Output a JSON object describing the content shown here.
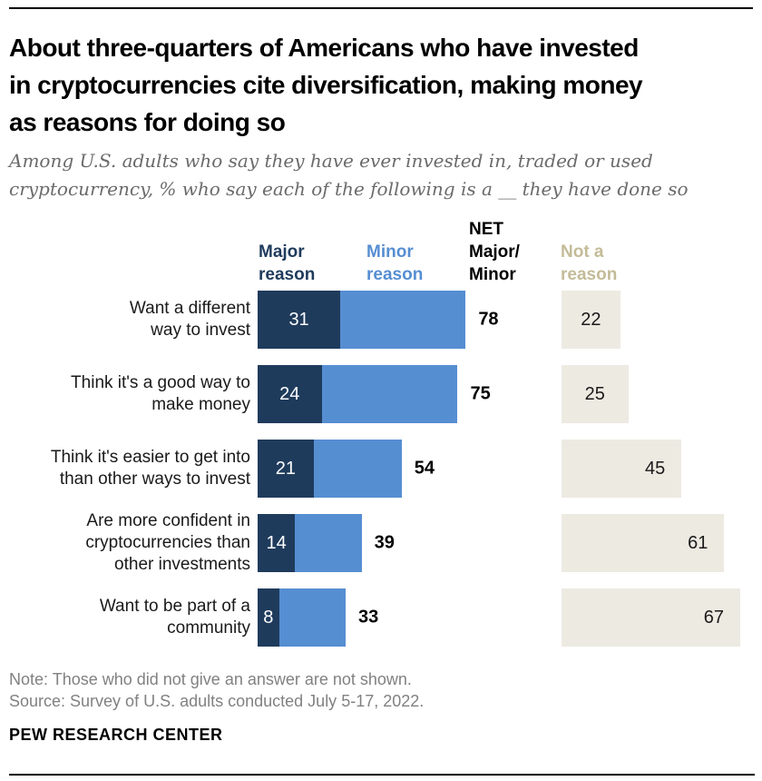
{
  "header": {
    "title": "About three-quarters of Americans who have invested\nin cryptocurrencies cite diversification, making money\nas reasons for doing so",
    "subtitle": "Among U.S. adults who say they have ever invested in, traded or used\ncryptocurrency, % who say each of the following is a __ they have done so"
  },
  "chart_data": {
    "type": "bar",
    "orientation": "horizontal",
    "stacked": true,
    "unit": "%",
    "xlim": [
      0,
      100
    ],
    "grid": false,
    "legend_position": "top",
    "legend": {
      "major": "Major\nreason",
      "minor": "Minor\nreason",
      "net": "NET\nMajor/\nMinor",
      "not_a_reason": "Not a\nreason"
    },
    "categories": [
      "Want a different way to invest",
      "Think it's a good way to make money",
      "Think it's easier to get into than other ways to invest",
      "Are more confident in cryptocurrencies than other investments",
      "Want to be part of a community"
    ],
    "series": [
      {
        "name": "Major reason",
        "values": [
          31,
          24,
          21,
          14,
          8
        ]
      },
      {
        "name": "NET Major/Minor",
        "values": [
          78,
          75,
          54,
          39,
          33
        ]
      },
      {
        "name": "Not a reason",
        "values": [
          22,
          25,
          45,
          61,
          67
        ]
      }
    ],
    "rows": [
      {
        "label": "Want a different\nway to invest",
        "major": 31,
        "net": 78,
        "not_a_reason": 22
      },
      {
        "label": "Think it's a good way to\nmake money",
        "major": 24,
        "net": 75,
        "not_a_reason": 25
      },
      {
        "label": "Think it's easier to get into\nthan other ways to invest",
        "major": 21,
        "net": 54,
        "not_a_reason": 45
      },
      {
        "label": "Are more confident in\ncryptocurrencies than\nother investments",
        "major": 14,
        "net": 39,
        "not_a_reason": 61
      },
      {
        "label": "Want to be part of a\ncommunity",
        "major": 8,
        "net": 33,
        "not_a_reason": 67
      }
    ]
  },
  "colors": {
    "major": "#1f3b5c",
    "minor": "#568ed2",
    "not_a_reason_bar": "#edeae2",
    "not_a_reason_header": "#c3bb98",
    "net_text": "#000000",
    "subtitle_text": "#6b6b6b",
    "note_text": "#818181",
    "rule": "#000000"
  },
  "footer": {
    "note": "Note: Those who did not give an answer are not shown.",
    "source": "Source: Survey of U.S. adults conducted July 5-17, 2022.",
    "brand": "PEW RESEARCH CENTER"
  }
}
